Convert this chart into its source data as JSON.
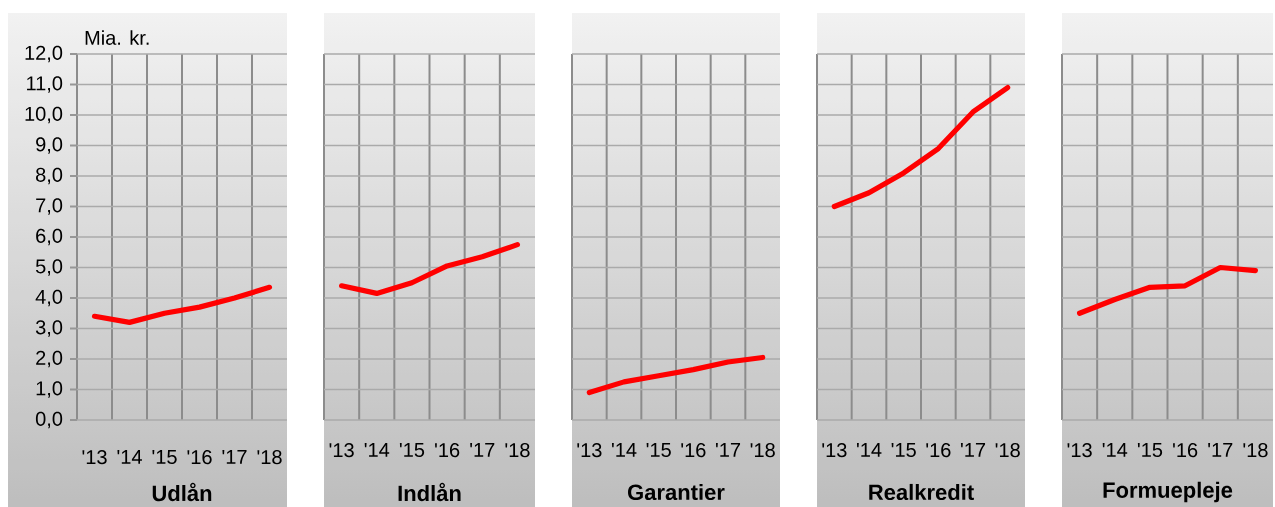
{
  "chart_data": [
    {
      "type": "line",
      "xlabel": "Udlån",
      "ylabel": "Mia. kr.",
      "categories": [
        "'13",
        "'14",
        "'15",
        "'16",
        "'17",
        "'18"
      ],
      "values": [
        3.4,
        3.2,
        3.5,
        3.7,
        4.0,
        4.35
      ],
      "color": "#ff0000",
      "ylim": [
        0,
        12
      ],
      "yticks": [
        {
          "value": 0,
          "label": "0,0"
        },
        {
          "value": 1,
          "label": "1,0"
        },
        {
          "value": 2,
          "label": "2,0"
        },
        {
          "value": 3,
          "label": "3,0"
        },
        {
          "value": 4,
          "label": "4,0"
        },
        {
          "value": 5,
          "label": "5,0"
        },
        {
          "value": 6,
          "label": "6,0"
        },
        {
          "value": 7,
          "label": "7,0"
        },
        {
          "value": 8,
          "label": "8,0"
        },
        {
          "value": 9,
          "label": "9,0"
        },
        {
          "value": 10,
          "label": "10,0"
        },
        {
          "value": 11,
          "label": "11,0"
        },
        {
          "value": 12,
          "label": "12,0"
        }
      ],
      "grid": true
    },
    {
      "type": "line",
      "xlabel": "Indlån",
      "categories": [
        "'13",
        "'14",
        "'15",
        "'16",
        "'17",
        "'18"
      ],
      "values": [
        4.4,
        4.15,
        4.5,
        5.05,
        5.35,
        5.75
      ],
      "color": "#ff0000",
      "ylim": [
        0,
        12
      ],
      "yticks": [
        {
          "value": 0,
          "label": null
        },
        {
          "value": 1,
          "label": null
        },
        {
          "value": 2,
          "label": null
        },
        {
          "value": 3,
          "label": null
        },
        {
          "value": 4,
          "label": null
        },
        {
          "value": 5,
          "label": null
        },
        {
          "value": 6,
          "label": null
        },
        {
          "value": 7,
          "label": null
        },
        {
          "value": 8,
          "label": null
        },
        {
          "value": 9,
          "label": null
        },
        {
          "value": 10,
          "label": null
        },
        {
          "value": 11,
          "label": null
        },
        {
          "value": 12,
          "label": null
        }
      ],
      "grid": true,
      "tick_labels": "x"
    },
    {
      "type": "line",
      "xlabel": "Garantier",
      "categories": [
        "'13",
        "'14",
        "'15",
        "'16",
        "'17",
        "'18"
      ],
      "values": [
        0.9,
        1.25,
        1.45,
        1.65,
        1.9,
        2.05
      ],
      "color": "#ff0000",
      "ylim": [
        0,
        12
      ],
      "yticks": [
        {
          "value": 0,
          "label": null
        },
        {
          "value": 1,
          "label": null
        },
        {
          "value": 2,
          "label": null
        },
        {
          "value": 3,
          "label": null
        },
        {
          "value": 4,
          "label": null
        },
        {
          "value": 5,
          "label": null
        },
        {
          "value": 6,
          "label": null
        },
        {
          "value": 7,
          "label": null
        },
        {
          "value": 8,
          "label": null
        },
        {
          "value": 9,
          "label": null
        },
        {
          "value": 10,
          "label": null
        },
        {
          "value": 11,
          "label": null
        },
        {
          "value": 12,
          "label": null
        }
      ],
      "grid": true,
      "tick_labels": "x"
    },
    {
      "type": "line",
      "xlabel": "Realkredit",
      "categories": [
        "'13",
        "'14",
        "'15",
        "'16",
        "'17",
        "'18"
      ],
      "values": [
        7.0,
        7.45,
        8.1,
        8.9,
        10.1,
        10.9
      ],
      "color": "#ff0000",
      "ylim": [
        0,
        12
      ],
      "yticks": [
        {
          "value": 0,
          "label": null
        },
        {
          "value": 1,
          "label": null
        },
        {
          "value": 2,
          "label": null
        },
        {
          "value": 3,
          "label": null
        },
        {
          "value": 4,
          "label": null
        },
        {
          "value": 5,
          "label": null
        },
        {
          "value": 6,
          "label": null
        },
        {
          "value": 7,
          "label": null
        },
        {
          "value": 8,
          "label": null
        },
        {
          "value": 9,
          "label": null
        },
        {
          "value": 10,
          "label": null
        },
        {
          "value": 11,
          "label": null
        },
        {
          "value": 12,
          "label": null
        }
      ],
      "grid": true,
      "tick_labels": "x"
    },
    {
      "type": "line",
      "xlabel": "Formuepleje",
      "categories": [
        "'13",
        "'14",
        "'15",
        "'16",
        "'17",
        "'18"
      ],
      "values": [
        3.5,
        3.95,
        4.35,
        4.4,
        5.0,
        4.9
      ],
      "color": "#ff0000",
      "ylim": [
        0,
        12
      ],
      "yticks": [
        {
          "value": 0,
          "label": null
        },
        {
          "value": 1,
          "label": null
        },
        {
          "value": 2,
          "label": null
        },
        {
          "value": 3,
          "label": null
        },
        {
          "value": 4,
          "label": null
        },
        {
          "value": 5,
          "label": null
        },
        {
          "value": 6,
          "label": null
        },
        {
          "value": 7,
          "label": null
        },
        {
          "value": 8,
          "label": null
        },
        {
          "value": 9,
          "label": null
        },
        {
          "value": 10,
          "label": null
        },
        {
          "value": 11,
          "label": null
        },
        {
          "value": 12,
          "label": null
        }
      ],
      "grid": true,
      "tick_labels": "x"
    }
  ]
}
